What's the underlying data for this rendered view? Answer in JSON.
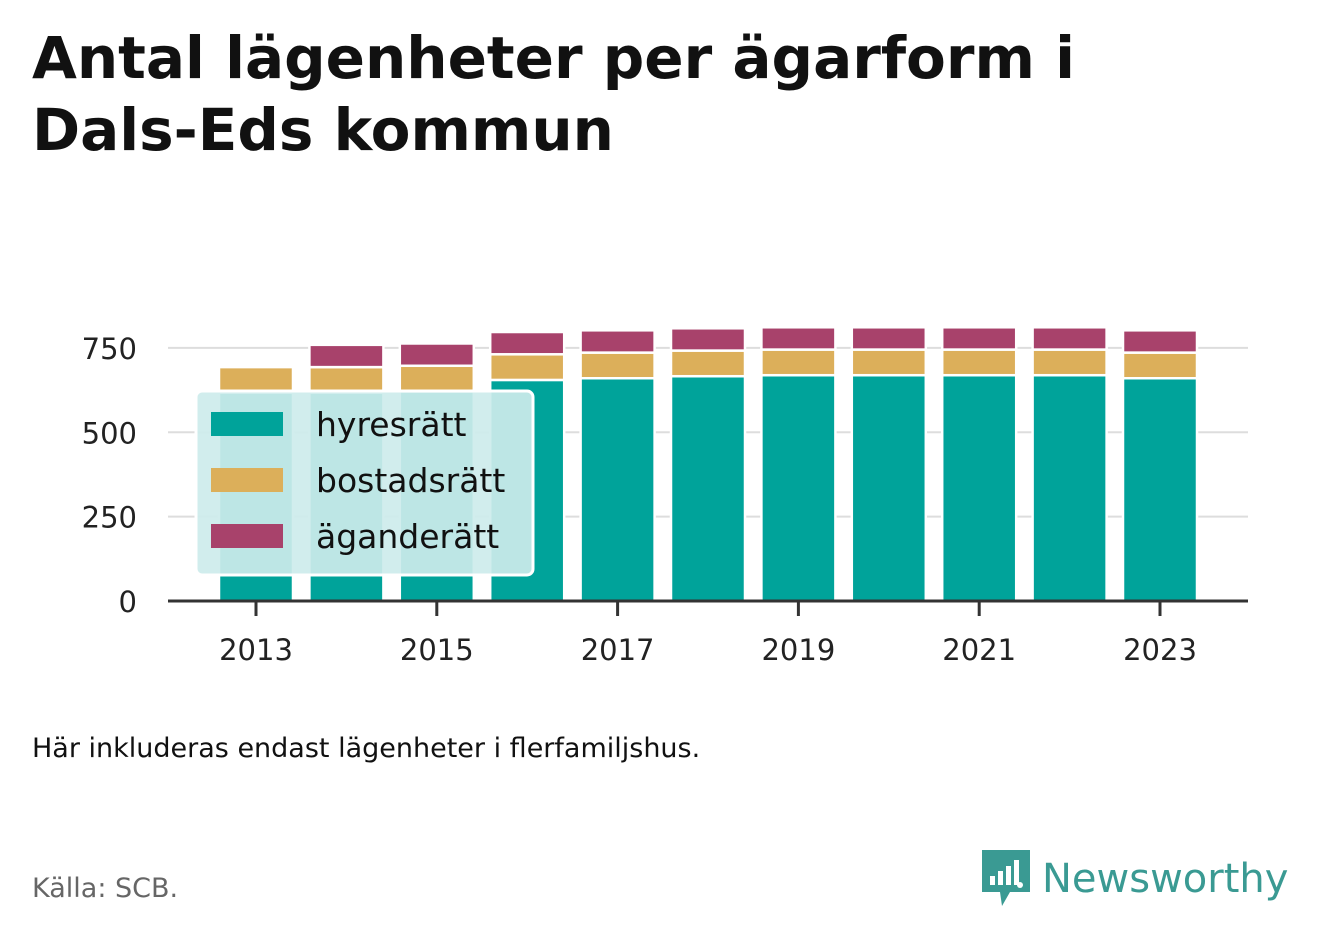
{
  "title_lines": [
    "Antal lägenheter per ägarform i",
    "Dals-Eds kommun"
  ],
  "note": "Här inkluderas endast lägenheter i flerfamiljshus.",
  "source": "Källa: SCB.",
  "brand": {
    "name": "Newsworthy",
    "logo_icon": "newsworthy-logo-icon",
    "color": "#3a9a93"
  },
  "chart_data": {
    "type": "bar",
    "stacked": true,
    "title": "Antal lägenheter per ägarform i Dals-Eds kommun",
    "categories": [
      "2013",
      "2014",
      "2015",
      "2016",
      "2017",
      "2018",
      "2019",
      "2020",
      "2021",
      "2022",
      "2023"
    ],
    "x_tick_labels": [
      "2013",
      "2015",
      "2017",
      "2019",
      "2021",
      "2023"
    ],
    "y_ticks": [
      "0",
      "250",
      "500",
      "750"
    ],
    "ylim": [
      0,
      800
    ],
    "grid": true,
    "legend_position": "left-center",
    "series": [
      {
        "name": "hyresrätt",
        "color": "#00a39a",
        "values": [
          617,
          617,
          621,
          655,
          660,
          666,
          669,
          669,
          669,
          669,
          660
        ]
      },
      {
        "name": "bostadsrätt",
        "color": "#dcaf5a",
        "values": [
          76,
          76,
          76,
          76,
          76,
          76,
          76,
          76,
          76,
          76,
          76
        ]
      },
      {
        "name": "äganderätt",
        "color": "#a8426b",
        "values": [
          0,
          66,
          66,
          66,
          66,
          66,
          66,
          66,
          66,
          66,
          66
        ]
      }
    ]
  }
}
